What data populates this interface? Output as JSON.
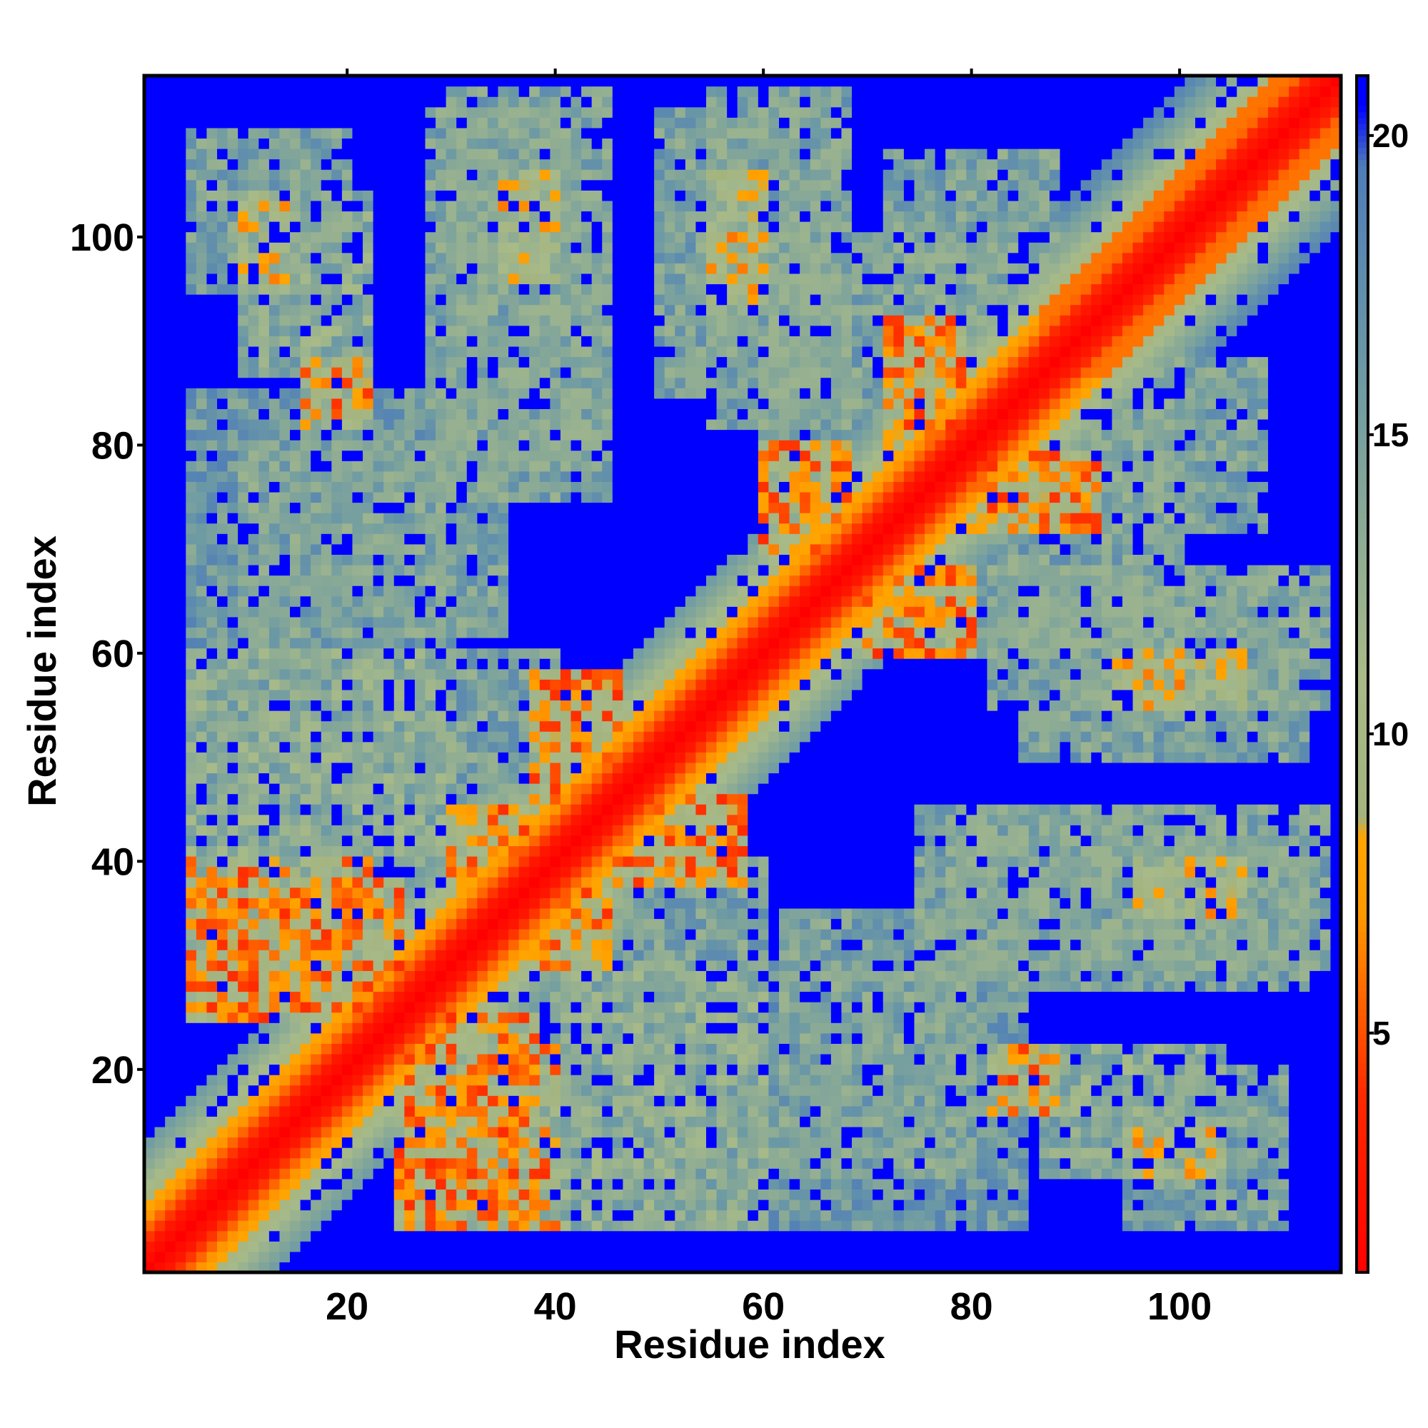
{
  "chart_data": {
    "type": "heatmap",
    "title": "",
    "xlabel": "Residue index",
    "ylabel": "Residue index",
    "x_range": [
      1,
      115
    ],
    "y_range": [
      1,
      115
    ],
    "x_ticks": [
      20,
      40,
      60,
      80,
      100
    ],
    "y_ticks": [
      20,
      40,
      60,
      80,
      100
    ],
    "colorbar": {
      "range": [
        1,
        21
      ],
      "ticks": [
        5,
        10,
        15,
        20
      ],
      "stops": [
        {
          "value": 1,
          "color": "#ff0000"
        },
        {
          "value": 4,
          "color": "#ff2a00"
        },
        {
          "value": 7,
          "color": "#ff9900"
        },
        {
          "value": 8.3,
          "color": "#ffa500"
        },
        {
          "value": 8.6,
          "color": "#a4b37e"
        },
        {
          "value": 11,
          "color": "#a8ba88"
        },
        {
          "value": 16,
          "color": "#6d9aa4"
        },
        {
          "value": 19.5,
          "color": "#4f7db8"
        },
        {
          "value": 20.5,
          "color": "#0000ff"
        }
      ],
      "beyond_color": "#0000ff"
    },
    "contact_bands": [
      {
        "x": [
          10,
          22
        ],
        "y": [
          87,
          104
        ],
        "level": 14
      },
      {
        "x": [
          30,
          45
        ],
        "y": [
          80,
          114
        ],
        "level": 15
      },
      {
        "x": [
          55,
          68
        ],
        "y": [
          82,
          114
        ],
        "level": 15
      },
      {
        "x": [
          72,
          88
        ],
        "y": [
          86,
          108
        ],
        "level": 15
      },
      {
        "x": [
          5,
          25
        ],
        "y": [
          25,
          38
        ],
        "level": 7
      },
      {
        "x": [
          26,
          40
        ],
        "y": [
          5,
          22
        ],
        "level": 7
      },
      {
        "x": [
          30,
          37
        ],
        "y": [
          38,
          45
        ],
        "level": 7
      },
      {
        "x": [
          38,
          45
        ],
        "y": [
          30,
          37
        ],
        "level": 7
      },
      {
        "x": [
          38,
          46
        ],
        "y": [
          45,
          58
        ],
        "level": 7
      },
      {
        "x": [
          45,
          58
        ],
        "y": [
          38,
          46
        ],
        "level": 7
      },
      {
        "x": [
          60,
          68
        ],
        "y": [
          70,
          80
        ],
        "level": 7
      },
      {
        "x": [
          70,
          80
        ],
        "y": [
          60,
          68
        ],
        "level": 7
      },
      {
        "x": [
          72,
          79
        ],
        "y": [
          80,
          92
        ],
        "level": 7
      },
      {
        "x": [
          80,
          92
        ],
        "y": [
          72,
          79
        ],
        "level": 7
      },
      {
        "x": [
          82,
          88
        ],
        "y": [
          16,
          22
        ],
        "level": 7
      },
      {
        "x": [
          94,
          106
        ],
        "y": [
          55,
          60
        ],
        "level": 9
      },
      {
        "x": [
          96,
          106
        ],
        "y": [
          35,
          40
        ],
        "level": 9
      },
      {
        "x": [
          95,
          104
        ],
        "y": [
          10,
          14
        ],
        "level": 9
      },
      {
        "x": [
          5,
          30
        ],
        "y": [
          40,
          60
        ],
        "level": 14
      },
      {
        "x": [
          10,
          35
        ],
        "y": [
          62,
          80
        ],
        "level": 15
      },
      {
        "x": [
          40,
          60
        ],
        "y": [
          5,
          40
        ],
        "level": 15
      },
      {
        "x": [
          60,
          85
        ],
        "y": [
          5,
          30
        ],
        "level": 16
      },
      {
        "x": [
          75,
          112
        ],
        "y": [
          28,
          45
        ],
        "level": 15
      },
      {
        "x": [
          85,
          112
        ],
        "y": [
          50,
          68
        ],
        "level": 15
      },
      {
        "x": [
          95,
          110
        ],
        "y": [
          5,
          20
        ],
        "level": 15
      },
      {
        "x": [
          80,
          100
        ],
        "y": [
          60,
          90
        ],
        "level": 15
      }
    ],
    "diagonal_band": {
      "core": 2,
      "mid": 6,
      "outer": 12,
      "helix_end": 115
    }
  }
}
